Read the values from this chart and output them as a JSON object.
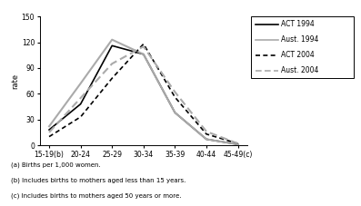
{
  "x_labels": [
    "15-19(b)",
    "20-24",
    "25-29",
    "30-34",
    "35-39",
    "40-44",
    "45-49(c)"
  ],
  "x_values": [
    0,
    1,
    2,
    3,
    4,
    5,
    6
  ],
  "series": {
    "ACT 1994": [
      18,
      48,
      116,
      106,
      38,
      7,
      1
    ],
    "Aust. 1994": [
      22,
      72,
      123,
      106,
      38,
      7,
      1
    ],
    "ACT 2004": [
      10,
      33,
      78,
      118,
      56,
      13,
      2
    ],
    "Aust. 2004": [
      15,
      55,
      95,
      115,
      62,
      16,
      2
    ]
  },
  "colors": {
    "ACT 1994": "#000000",
    "Aust. 1994": "#aaaaaa",
    "ACT 2004": "#000000",
    "Aust. 2004": "#aaaaaa"
  },
  "linestyles": {
    "ACT 1994": "solid",
    "Aust. 1994": "solid",
    "ACT 2004": "dashed",
    "Aust. 2004": "dashed"
  },
  "ylabel": "rate",
  "ylim": [
    0,
    150
  ],
  "yticks": [
    0,
    30,
    60,
    90,
    120,
    150
  ],
  "footnotes": [
    "(a) Births per 1,000 women.",
    "(b) Includes births to mothers aged less than 15 years.",
    "(c) Includes births to mothers aged 50 years or more."
  ],
  "background_color": "#ffffff",
  "legend_order": [
    "ACT 1994",
    "Aust. 1994",
    "ACT 2004",
    "Aust. 2004"
  ],
  "legend_linestyles": {
    "ACT 1994": "solid",
    "Aust. 1994": "solid",
    "ACT 2004": "dashed",
    "Aust. 2004": "dashed"
  }
}
